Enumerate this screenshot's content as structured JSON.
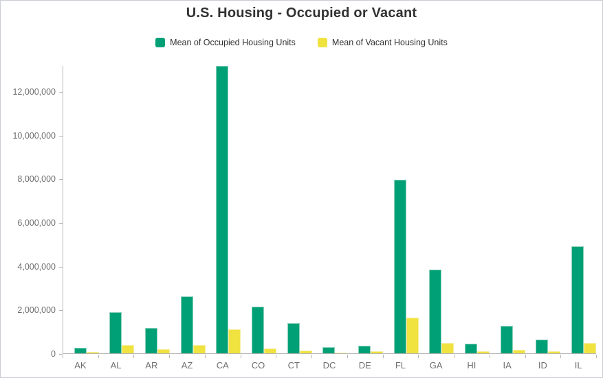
{
  "title": "U.S. Housing - Occupied or Vacant",
  "colors": {
    "occupied_fill": "#00A076",
    "occupied_border": "#8ed1ba",
    "vacant_fill": "#F0E23F",
    "vacant_border": "#f6ee9b",
    "axis_line": "#b5b5b5",
    "axis_text": "#6e6e6e",
    "title_text": "#323232"
  },
  "chart_data": {
    "type": "bar",
    "title": "U.S. Housing - Occupied or Vacant",
    "xlabel": "",
    "ylabel": "",
    "grid": false,
    "legend_position": "top",
    "ylim": [
      0,
      13200000
    ],
    "categories": [
      "AK",
      "AL",
      "AR",
      "AZ",
      "CA",
      "CO",
      "CT",
      "DC",
      "DE",
      "FL",
      "GA",
      "HI",
      "IA",
      "ID",
      "IL"
    ],
    "series": [
      {
        "name": "Mean of Occupied Housing Units",
        "color": "#00A076",
        "values": [
          245000,
          1880000,
          1150000,
          2615000,
          13150000,
          2135000,
          1380000,
          280000,
          345000,
          7950000,
          3830000,
          440000,
          1270000,
          625000,
          4900000
        ]
      },
      {
        "name": "Mean of Vacant Housing Units",
        "color": "#F0E23F",
        "values": [
          65000,
          367000,
          180000,
          367000,
          1100000,
          215000,
          120000,
          40000,
          90000,
          1620000,
          470000,
          85000,
          145000,
          85000,
          470000
        ]
      }
    ],
    "y_ticks": {
      "values": [
        0,
        2000000,
        4000000,
        6000000,
        8000000,
        10000000,
        12000000
      ],
      "labels": [
        "0",
        "2,000,000",
        "4,000,000",
        "6,000,000",
        "8,000,000",
        "10,000,000",
        "12,000,000"
      ]
    }
  }
}
